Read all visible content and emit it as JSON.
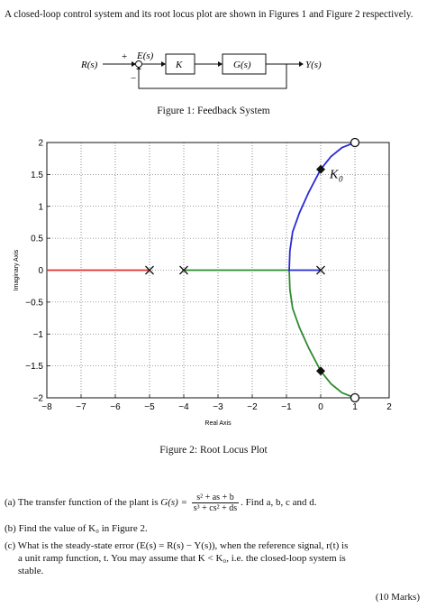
{
  "intro_text": "A closed-loop control system and its root locus plot are shown in Figures 1 and Figure 2 respectively.",
  "block_diagram": {
    "input_label": "R(s)",
    "plus_sign": "+",
    "minus_sign": "−",
    "error_label": "E(s)",
    "controller_label": "K",
    "plant_label": "G(s)",
    "output_label": "Y(s)"
  },
  "figure1_caption": "Figure 1: Feedback System",
  "figure2_caption": "Figure 2: Root Locus Plot",
  "chart_data": {
    "type": "line",
    "title": "",
    "xlabel": "Real Axis",
    "ylabel": "Imaginary Axis",
    "xlim": [
      -8,
      2
    ],
    "ylim": [
      -2,
      2
    ],
    "xticks": [
      "−8",
      "−7",
      "−6",
      "−5",
      "−4",
      "−3",
      "−2",
      "−1",
      "0",
      "1",
      "2"
    ],
    "yticks": [
      "2",
      "1.5",
      "1",
      "0.5",
      "0",
      "−0.5",
      "−1",
      "−1.5",
      "−2"
    ],
    "grid": true,
    "annotation": "K",
    "annotation_sub": "0",
    "poles": [
      [
        -5,
        0
      ],
      [
        -4,
        0
      ],
      [
        0,
        0
      ]
    ],
    "zeros": [
      [
        1,
        2
      ],
      [
        1,
        -2
      ]
    ],
    "marked_points": [
      [
        0,
        1.58
      ],
      [
        0,
        -1.58
      ]
    ],
    "series": [
      {
        "color": "#e03030",
        "points": [
          [
            -8,
            0
          ],
          [
            -5,
            0
          ]
        ]
      },
      {
        "color": "#2e8b2e",
        "points": [
          [
            -4,
            0
          ],
          [
            -0.92,
            0
          ],
          [
            -0.9,
            -0.3
          ],
          [
            -0.82,
            -0.6
          ],
          [
            -0.62,
            -0.9
          ],
          [
            -0.35,
            -1.22
          ],
          [
            0,
            -1.58
          ],
          [
            0.3,
            -1.78
          ],
          [
            0.62,
            -1.92
          ],
          [
            1,
            -2
          ]
        ]
      },
      {
        "color": "#2a2ad8",
        "points": [
          [
            0,
            0
          ],
          [
            -0.92,
            0
          ],
          [
            -0.9,
            0.3
          ],
          [
            -0.82,
            0.6
          ],
          [
            -0.62,
            0.9
          ],
          [
            -0.35,
            1.22
          ],
          [
            0,
            1.58
          ],
          [
            0.3,
            1.78
          ],
          [
            0.62,
            1.92
          ],
          [
            1,
            2
          ]
        ]
      }
    ]
  },
  "questions": {
    "a_prefix": "(a) The transfer function of the plant is",
    "a_lhs": "G(s) =",
    "a_num": "s² + as + b",
    "a_den": "s³ + cs² + ds",
    "a_suffix": ". Find a, b, c and d.",
    "b_text": "(b) Find the value of K₀ in Figure 2.",
    "c_line1": "(c) What is the steady-state error (E(s) = R(s) − Y(s)), when the reference signal, r(t) is",
    "c_line2": "a unit ramp function, t. You may assume that K < K₀, i.e. the closed-loop system is",
    "c_line3": "stable."
  },
  "marks": "(10 Marks)"
}
